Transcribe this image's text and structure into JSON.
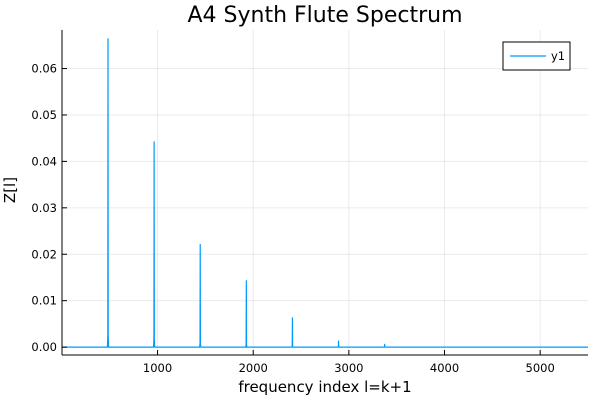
{
  "chart_data": {
    "type": "line",
    "title": "A4 Synth Flute Spectrum",
    "xlabel": "frequency index l=k+1",
    "ylabel": "Z[l]",
    "xlim": [
      1,
      5500
    ],
    "ylim": [
      -0.0017,
      0.0683
    ],
    "x_ticks": [
      1000,
      2000,
      3000,
      4000,
      5000
    ],
    "x_tick_labels": [
      "1000",
      "2000",
      "3000",
      "4000",
      "5000"
    ],
    "y_ticks": [
      0.0,
      0.01,
      0.02,
      0.03,
      0.04,
      0.05,
      0.06
    ],
    "y_tick_labels": [
      "0.00",
      "0.01",
      "0.02",
      "0.03",
      "0.04",
      "0.05",
      "0.06"
    ],
    "grid": true,
    "legend_position": "top-right",
    "series": [
      {
        "name": "y1",
        "color": "#009af9",
        "peaks": [
          {
            "x": 482,
            "y": 0.0664
          },
          {
            "x": 964,
            "y": 0.0442
          },
          {
            "x": 1446,
            "y": 0.0221
          },
          {
            "x": 1928,
            "y": 0.0143
          },
          {
            "x": 2410,
            "y": 0.0063
          },
          {
            "x": 2892,
            "y": 0.0013
          },
          {
            "x": 3374,
            "y": 0.0006
          }
        ]
      }
    ]
  }
}
